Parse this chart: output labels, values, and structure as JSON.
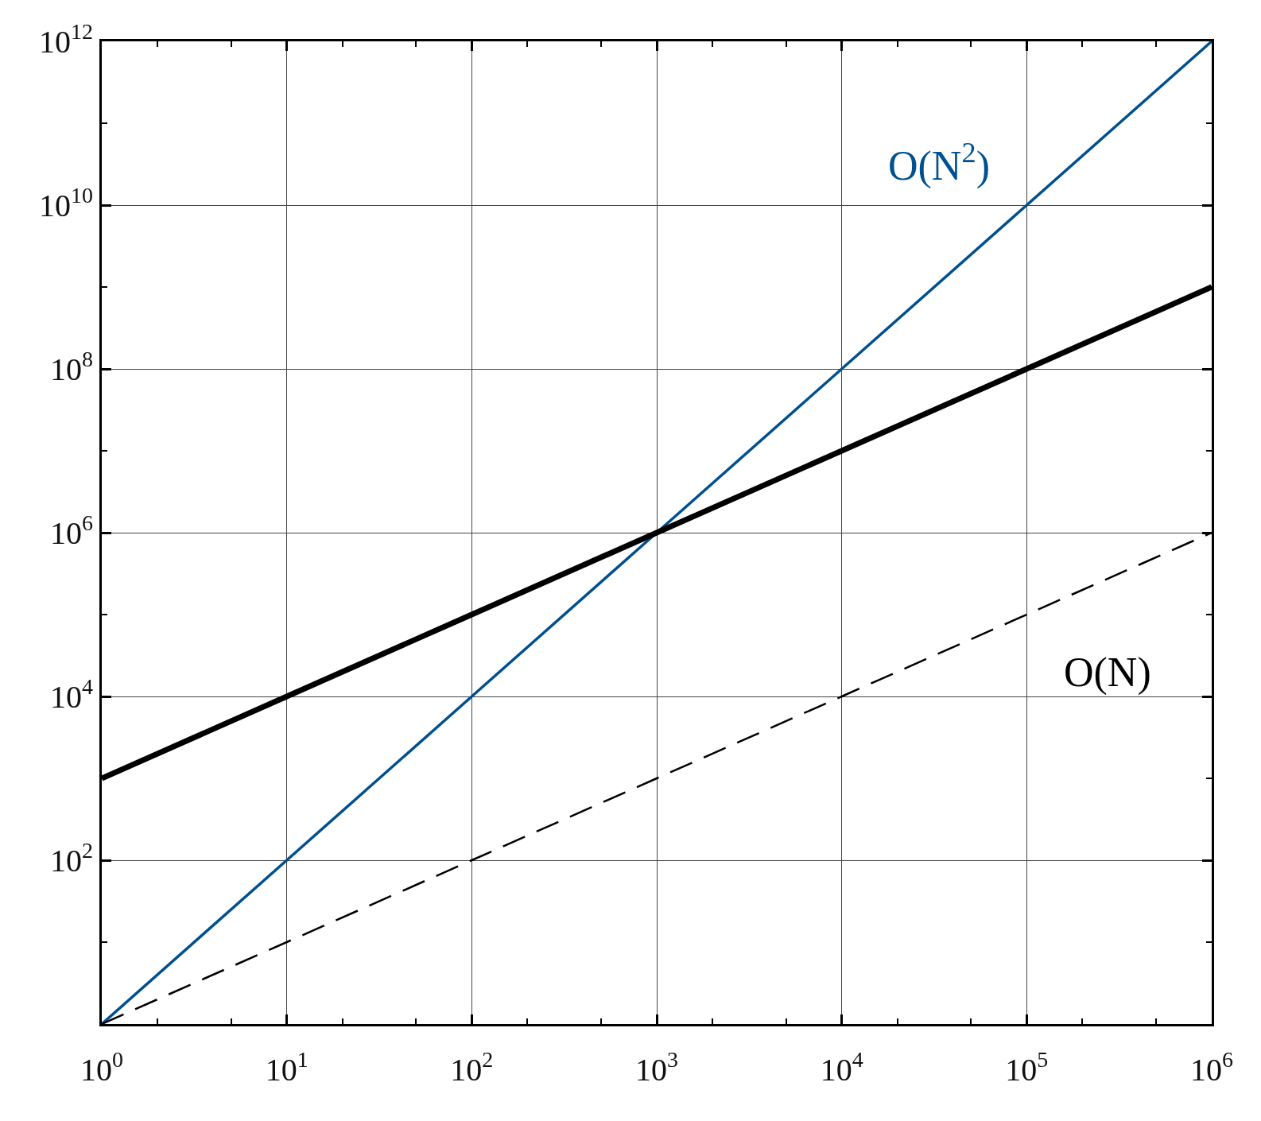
{
  "chart_data": {
    "type": "line",
    "log": "xy",
    "grid": true,
    "xlim": [
      1,
      1000000
    ],
    "ylim": [
      1,
      1000000000000
    ],
    "xticks": [
      {
        "value": 1,
        "label": "10$^{0}$"
      },
      {
        "value": 10,
        "label": "10$^{1}$"
      },
      {
        "value": 100,
        "label": "10$^{2}$"
      },
      {
        "value": 1000,
        "label": "10$^{3}$"
      },
      {
        "value": 10000,
        "label": "10$^{4}$"
      },
      {
        "value": 100000,
        "label": "10$^{5}$"
      },
      {
        "value": 1000000,
        "label": "10$^{6}$"
      }
    ],
    "yticks": [
      {
        "value": 1,
        "label": null
      },
      {
        "value": 100,
        "label": "10$^{2}$"
      },
      {
        "value": 10000,
        "label": "10$^{4}$"
      },
      {
        "value": 1000000,
        "label": "10$^{6}$"
      },
      {
        "value": 100000000,
        "label": "10$^{8}$"
      },
      {
        "value": 10000000000,
        "label": "10$^{10}$"
      },
      {
        "value": 1000000000000,
        "label": "10$^{12}$"
      }
    ],
    "series": [
      {
        "color": "#00508f",
        "x": [
          1,
          10,
          100,
          1000,
          10000,
          100000,
          1000000
        ],
        "values": [
          1,
          100,
          10000,
          1000000,
          100000000,
          10000000000,
          1000000000000
        ],
        "line_style": "solid"
      },
      {
        "color": "#000000",
        "x": [
          1,
          10,
          100,
          1000,
          10000,
          100000,
          1000000
        ],
        "values": [
          1000,
          10000,
          100000,
          1000000,
          10000000,
          100000000,
          1000000000
        ],
        "line_style": "solid"
      },
      {
        "color": "#000000",
        "x": [
          1,
          10,
          100,
          1000,
          10000,
          100000,
          1000000
        ],
        "values": [
          1,
          10,
          100,
          1000,
          10000,
          100000,
          1000000
        ],
        "line_style": "dashed"
      }
    ],
    "annotations": [
      "O(N$^{2}$)",
      "O(N)"
    ]
  }
}
